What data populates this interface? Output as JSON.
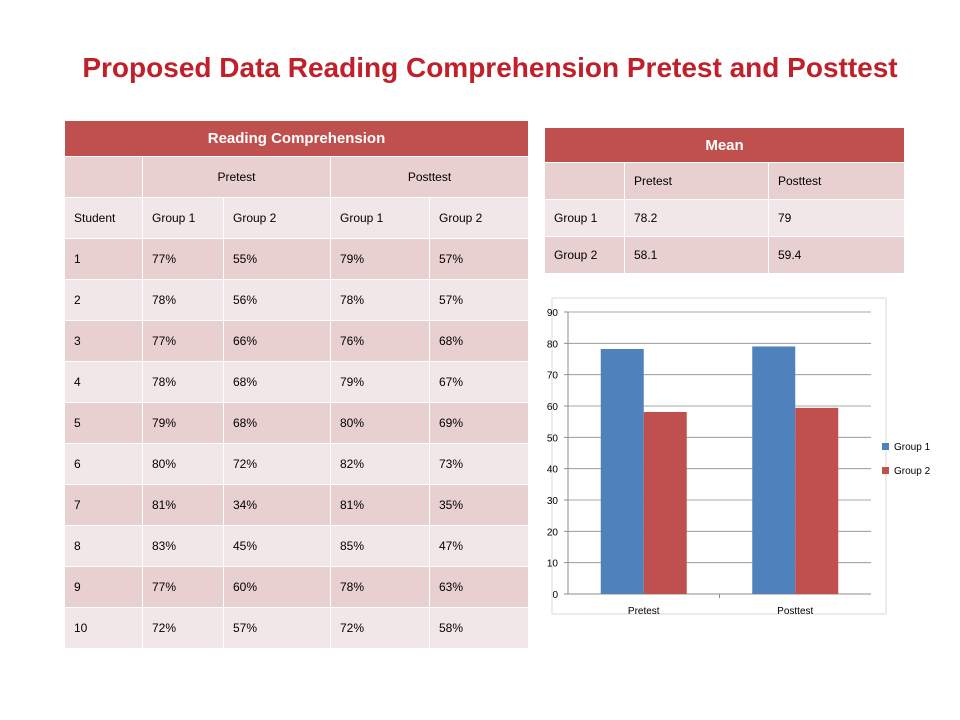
{
  "title": "Proposed Data Reading Comprehension Pretest and Posttest",
  "reading_table": {
    "header": "Reading Comprehension",
    "test_row": [
      "",
      "Pretest",
      "Posttest"
    ],
    "columns": [
      "Student",
      "Group 1",
      "Group 2",
      "Group 1",
      "Group 2"
    ],
    "rows": [
      [
        "1",
        "77%",
        "55%",
        "79%",
        "57%"
      ],
      [
        "2",
        "78%",
        "56%",
        "78%",
        "57%"
      ],
      [
        "3",
        "77%",
        "66%",
        "76%",
        "68%"
      ],
      [
        "4",
        "78%",
        "68%",
        "79%",
        "67%"
      ],
      [
        "5",
        "79%",
        "68%",
        "80%",
        "69%"
      ],
      [
        "6",
        "80%",
        "72%",
        "82%",
        "73%"
      ],
      [
        "7",
        "81%",
        "34%",
        "81%",
        "35%"
      ],
      [
        "8",
        "83%",
        "45%",
        "85%",
        "47%"
      ],
      [
        "9",
        "77%",
        "60%",
        "78%",
        "63%"
      ],
      [
        "10",
        "72%",
        "57%",
        "72%",
        "58%"
      ]
    ]
  },
  "mean_table": {
    "header": "Mean",
    "columns": [
      "",
      "Pretest",
      "Posttest"
    ],
    "rows": [
      [
        "Group 1",
        "78.2",
        "79"
      ],
      [
        "Group 2",
        "58.1",
        "59.4"
      ]
    ]
  },
  "chart_data": {
    "type": "bar",
    "categories": [
      "Pretest",
      "Posttest"
    ],
    "series": [
      {
        "name": "Group 1",
        "values": [
          78.2,
          79
        ],
        "color": "#4f81bd"
      },
      {
        "name": "Group 2",
        "values": [
          58.1,
          59.4
        ],
        "color": "#c0504d"
      }
    ],
    "ylim": [
      0,
      90
    ],
    "yticks": [
      0,
      10,
      20,
      30,
      40,
      50,
      60,
      70,
      80,
      90
    ],
    "grid": true,
    "legend": "right"
  }
}
